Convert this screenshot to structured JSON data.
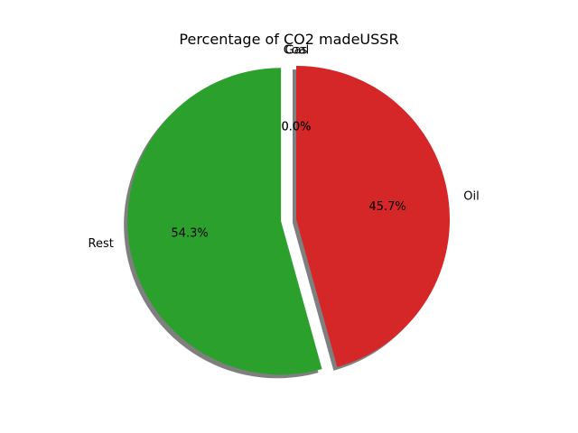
{
  "chart_data": {
    "type": "pie",
    "title": "Percentage of CO2 madeUSSR",
    "start_angle_deg": 90,
    "counterclock": false,
    "shadow": true,
    "slices": [
      {
        "label": "Coal",
        "value": 0.0,
        "pct_label": "0.0%",
        "color": "#1f77b4",
        "explode": 0.0
      },
      {
        "label": "Gas",
        "value": 0.0,
        "pct_label": "0.0%",
        "color": "#ff7f0e",
        "explode": 0.0
      },
      {
        "label": "Oil",
        "value": 45.7,
        "pct_label": "45.7%",
        "color": "#d62728",
        "explode": 0.0
      },
      {
        "label": "Rest",
        "value": 54.3,
        "pct_label": "54.3%",
        "color": "#2ca02c",
        "explode": 0.1
      }
    ]
  }
}
